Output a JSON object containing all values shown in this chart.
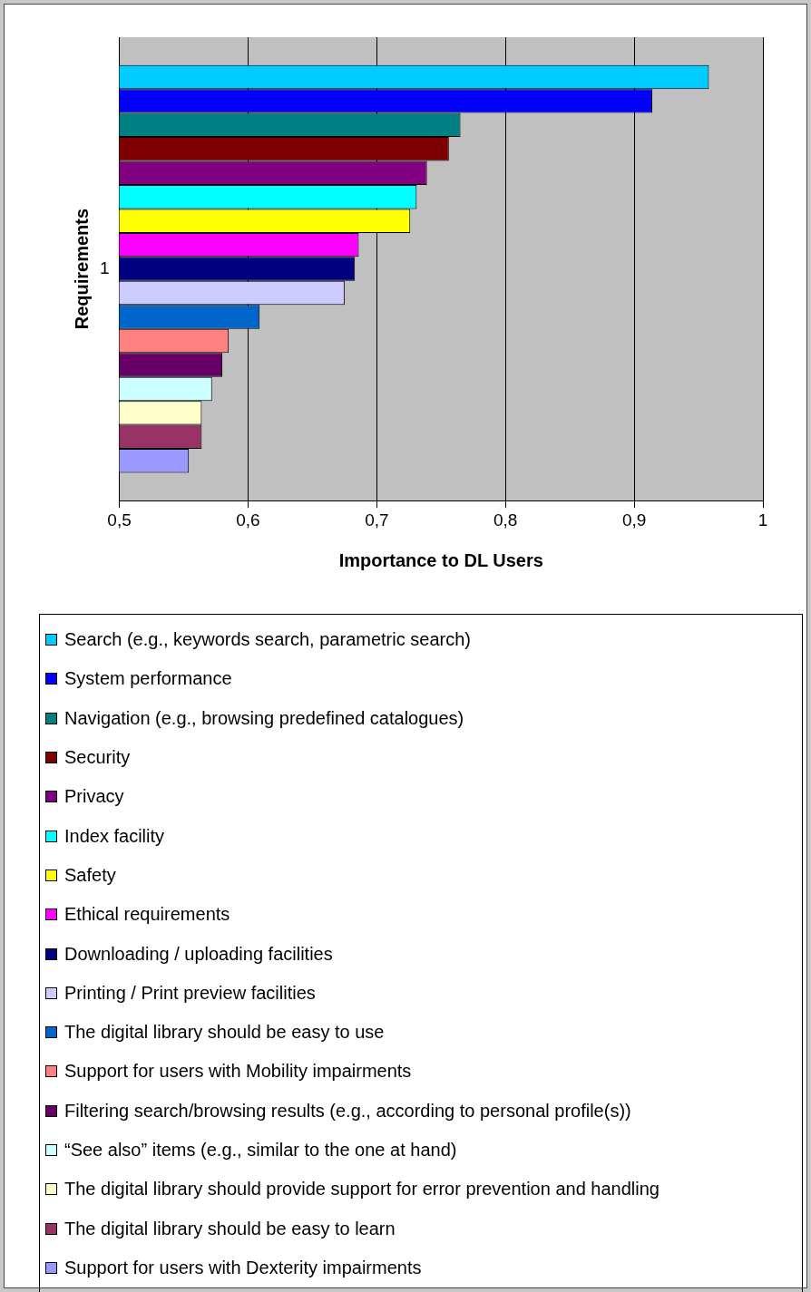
{
  "chart_data": {
    "type": "bar",
    "orientation": "horizontal",
    "categories": [
      "1"
    ],
    "xlabel": "Importance to DL Users",
    "ylabel": "Requirements",
    "xlim": [
      0.5,
      1
    ],
    "xticks": [
      {
        "value": 0.5,
        "label": "0,5"
      },
      {
        "value": 0.6,
        "label": "0,6"
      },
      {
        "value": 0.7,
        "label": "0,7"
      },
      {
        "value": 0.8,
        "label": "0,8"
      },
      {
        "value": 0.9,
        "label": "0,9"
      },
      1
    ],
    "grid": "x",
    "legend": "bottom",
    "series": [
      {
        "name": "Search (e.g., keywords search, parametric search)",
        "color": "#00ccff",
        "values": [
          0.958
        ]
      },
      {
        "name": "System performance",
        "color": "#0000ff",
        "values": [
          0.914
        ]
      },
      {
        "name": "Navigation (e.g., browsing predefined catalogues)",
        "color": "#008080",
        "values": [
          0.765
        ]
      },
      {
        "name": "Security",
        "color": "#800000",
        "values": [
          0.756
        ]
      },
      {
        "name": "Privacy",
        "color": "#800080",
        "values": [
          0.739
        ]
      },
      {
        "name": "Index facility",
        "color": "#00ffff",
        "values": [
          0.731
        ]
      },
      {
        "name": "Safety",
        "color": "#ffff00",
        "values": [
          0.726
        ]
      },
      {
        "name": "Ethical requirements",
        "color": "#ff00ff",
        "values": [
          0.686
        ]
      },
      {
        "name": "Downloading / uploading facilities",
        "color": "#000080",
        "values": [
          0.683
        ]
      },
      {
        "name": "Printing / Print preview facilities",
        "color": "#ccccff",
        "values": [
          0.675
        ]
      },
      {
        "name": "The digital library should be easy to use",
        "color": "#0066cc",
        "values": [
          0.609
        ]
      },
      {
        "name": "Support for users with Mobility impairments",
        "color": "#ff8080",
        "values": [
          0.585
        ]
      },
      {
        "name": "Filtering search/browsing results (e.g., according to personal profile(s))",
        "color": "#660066",
        "values": [
          0.58
        ]
      },
      {
        "name": "“See also” items (e.g.,  similar to the one at hand)",
        "color": "#ccffff",
        "values": [
          0.572
        ]
      },
      {
        "name": "The digital library should provide support for error prevention and handling",
        "color": "#ffffcc",
        "values": [
          0.564
        ]
      },
      {
        "name": "The digital library should be easy to learn",
        "color": "#993366",
        "values": [
          0.564
        ]
      },
      {
        "name": "Support for users with Dexterity impairments",
        "color": "#9999ff",
        "values": [
          0.554
        ]
      }
    ]
  }
}
